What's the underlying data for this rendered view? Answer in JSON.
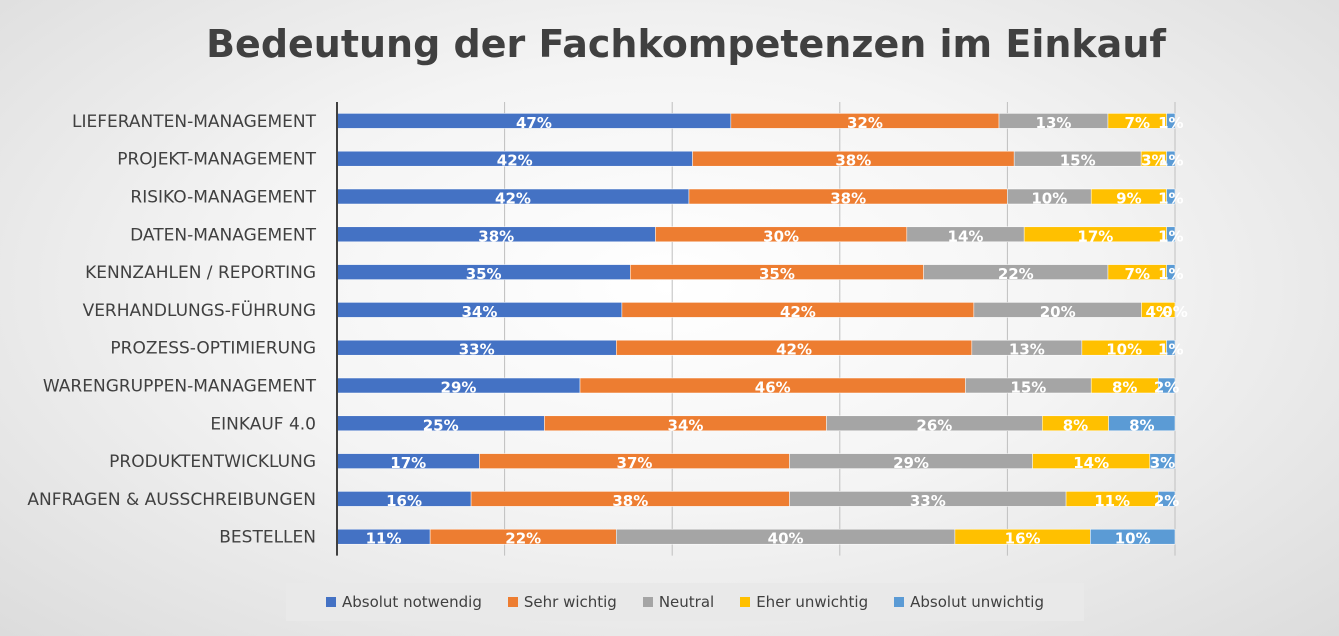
{
  "chart_data": {
    "type": "bar",
    "orientation": "horizontal",
    "stacked": "100%",
    "title": "Bedeutung der Fachkompetenzen im Einkauf",
    "categories": [
      "LIEFERANTEN-MANAGEMENT",
      "PROJEKT-MANAGEMENT",
      "RISIKO-MANAGEMENT",
      "DATEN-MANAGEMENT",
      "KENNZAHLEN / REPORTING",
      "VERHANDLUNGS-FÜHRUNG",
      "PROZESS-OPTIMIERUNG",
      "WARENGRUPPEN-MANAGEMENT",
      "EINKAUF 4.0",
      "PRODUKTENTWICKLUNG",
      "ANFRAGEN & AUSSCHREIBUNGEN",
      "BESTELLEN"
    ],
    "series": [
      {
        "name": "Absolut notwendig",
        "color": "#4472C4",
        "values": [
          47,
          42,
          42,
          38,
          35,
          34,
          33,
          29,
          25,
          17,
          16,
          11
        ]
      },
      {
        "name": "Sehr wichtig",
        "color": "#ED7D31",
        "values": [
          32,
          38,
          38,
          30,
          35,
          42,
          42,
          46,
          34,
          37,
          38,
          22
        ]
      },
      {
        "name": "Neutral",
        "color": "#A5A5A5",
        "values": [
          13,
          15,
          10,
          14,
          22,
          20,
          13,
          15,
          26,
          29,
          33,
          40
        ]
      },
      {
        "name": "Eher unwichtig",
        "color": "#FFC000",
        "values": [
          7,
          3,
          9,
          17,
          7,
          4,
          10,
          8,
          8,
          14,
          11,
          16
        ]
      },
      {
        "name": "Absolut unwichtig",
        "color": "#5B9BD5",
        "values": [
          1,
          1,
          1,
          1,
          1,
          0,
          1,
          2,
          8,
          3,
          2,
          10
        ]
      }
    ],
    "value_suffix": "%",
    "xlim": [
      0,
      100
    ],
    "grid": true,
    "legend": "bottom"
  }
}
